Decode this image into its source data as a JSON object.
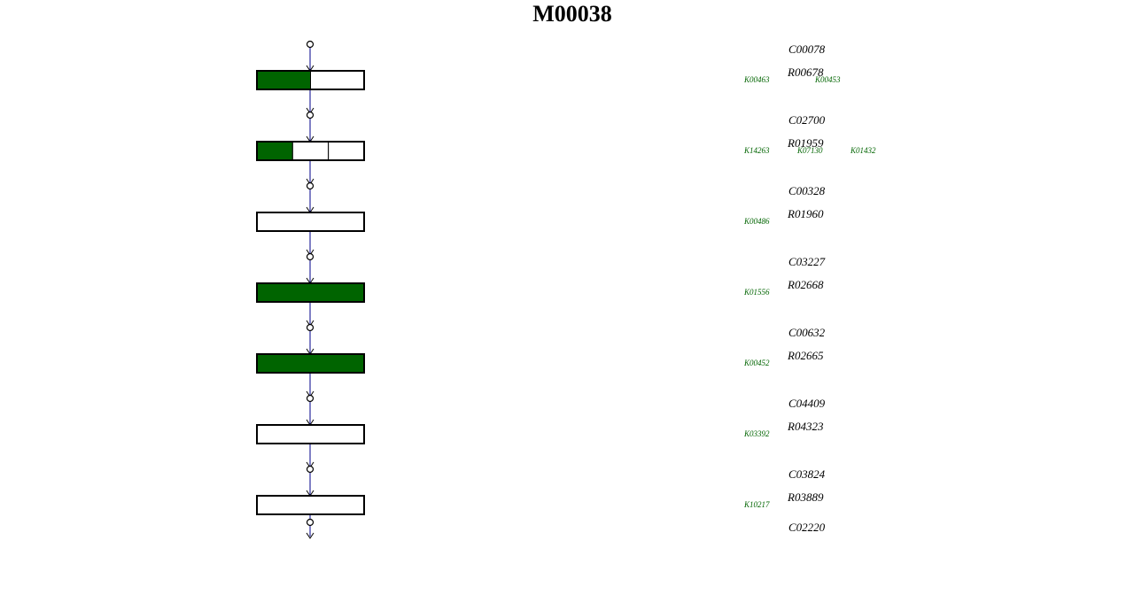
{
  "title": "M00038",
  "steps": [
    {
      "compound": "C00078",
      "reaction": "R00678",
      "kos": [
        "K00463",
        "K00453"
      ],
      "segments": [
        "#006400",
        "#ffffff"
      ]
    },
    {
      "compound": "C02700",
      "reaction": "R01959",
      "kos": [
        "K14263",
        "K07130",
        "K01432"
      ],
      "segments": [
        "#006400",
        "#ffffff",
        "#ffffff"
      ]
    },
    {
      "compound": "C00328",
      "reaction": "R01960",
      "kos": [
        "K00486"
      ],
      "segments": [
        "#ffffff"
      ]
    },
    {
      "compound": "C03227",
      "reaction": "R02668",
      "kos": [
        "K01556"
      ],
      "segments": [
        "#006400"
      ]
    },
    {
      "compound": "C00632",
      "reaction": "R02665",
      "kos": [
        "K00452"
      ],
      "segments": [
        "#006400"
      ]
    },
    {
      "compound": "C04409",
      "reaction": "R04323",
      "kos": [
        "K03392"
      ],
      "segments": [
        "#ffffff"
      ]
    },
    {
      "compound": "C03824",
      "reaction": "R03889",
      "kos": [
        "K10217"
      ],
      "segments": [
        "#ffffff"
      ]
    }
  ],
  "final_compound": "C02220"
}
